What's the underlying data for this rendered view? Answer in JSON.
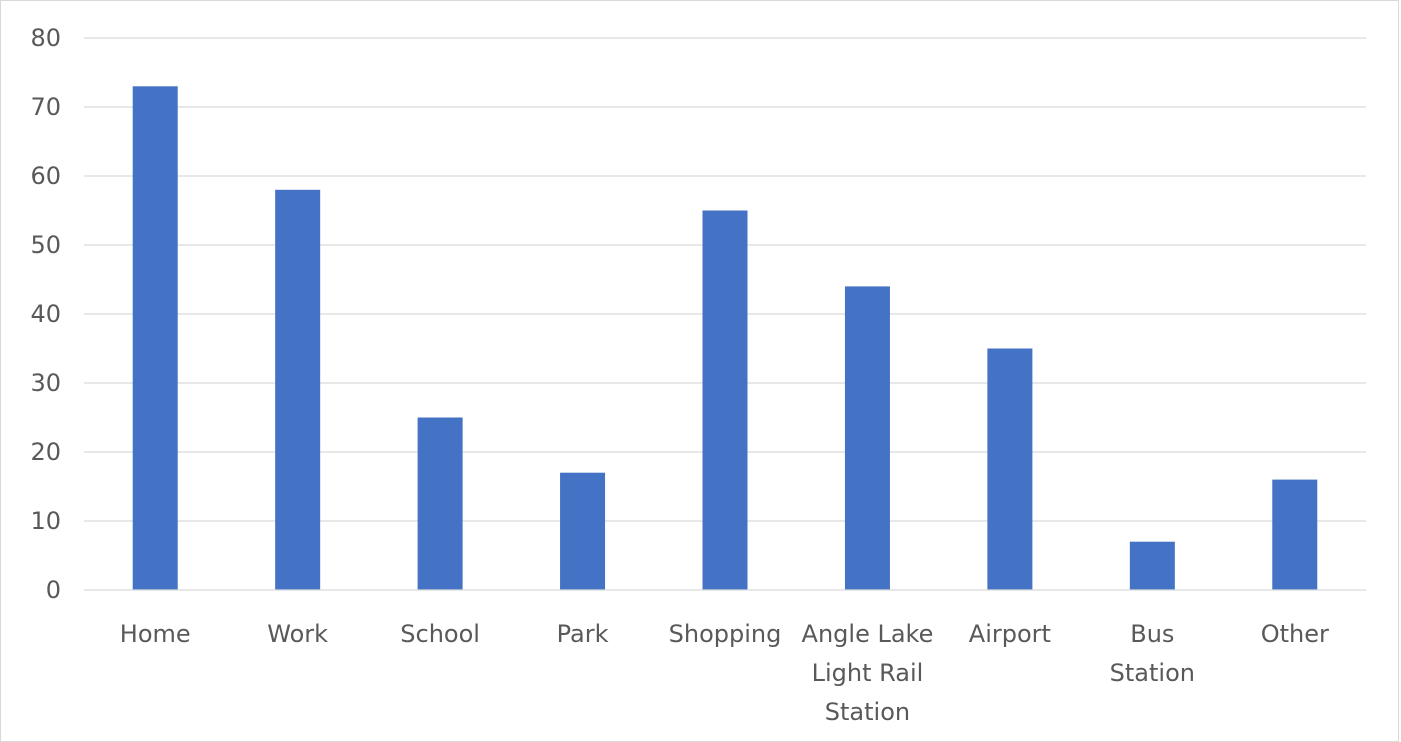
{
  "chart_data": {
    "type": "bar",
    "title": "",
    "xlabel": "",
    "ylabel": "",
    "categories": [
      [
        "Home"
      ],
      [
        "Work"
      ],
      [
        "School"
      ],
      [
        "Park"
      ],
      [
        "Shopping"
      ],
      [
        "Angle Lake",
        "Light Rail",
        "Station"
      ],
      [
        "Airport"
      ],
      [
        "Bus",
        "Station"
      ],
      [
        "Other"
      ]
    ],
    "values": [
      73,
      58,
      25,
      17,
      55,
      44,
      35,
      7,
      16
    ],
    "ylim": [
      0,
      80
    ],
    "yticks": [
      0,
      10,
      20,
      30,
      40,
      50,
      60,
      70,
      80
    ],
    "grid": true,
    "legend": "none",
    "colors": {
      "bar": "#4472C4",
      "grid": "#d9d9d9",
      "text": "#595959"
    }
  }
}
